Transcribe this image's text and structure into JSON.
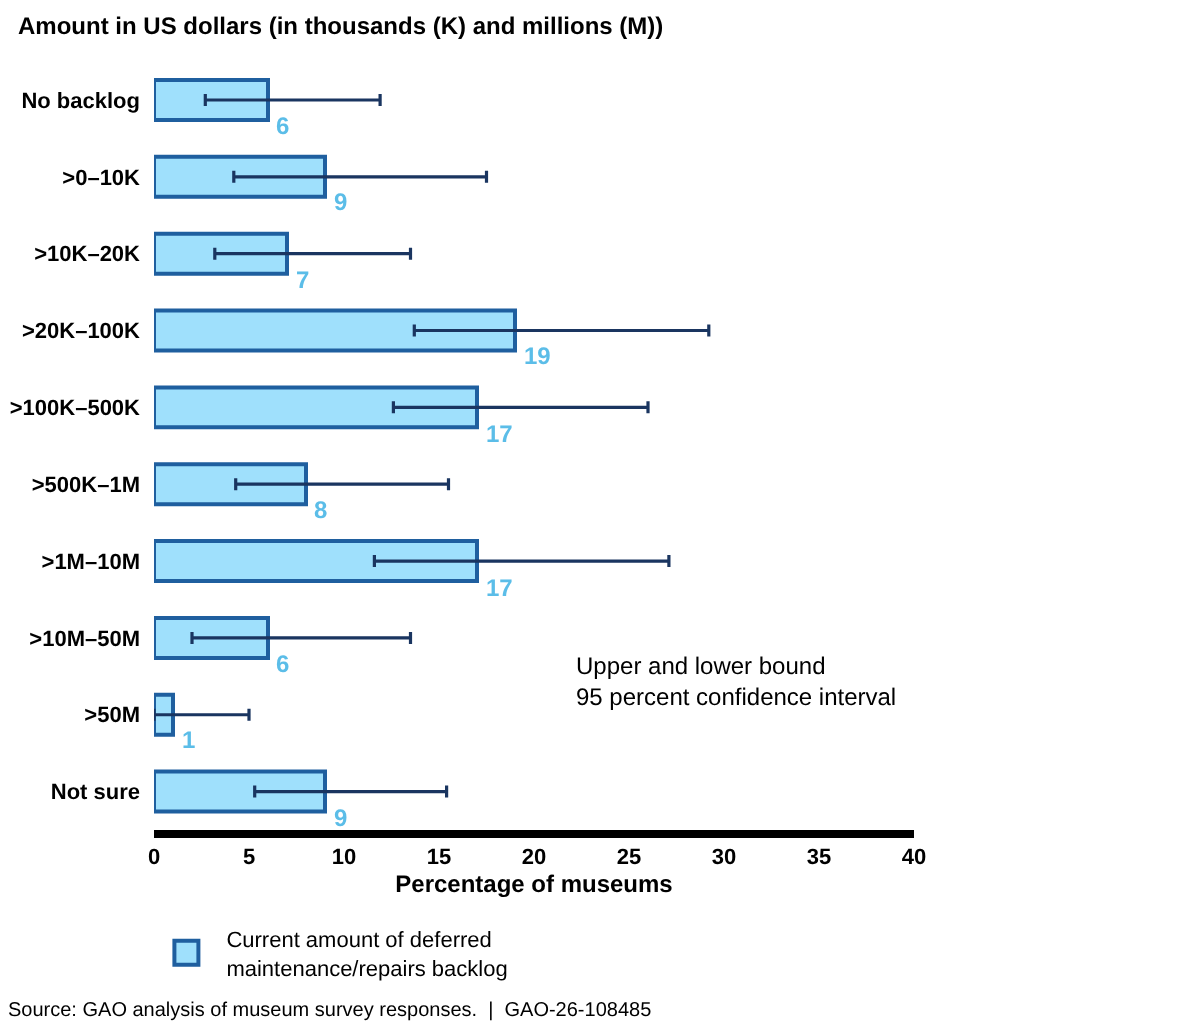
{
  "chart_data": {
    "type": "bar",
    "orientation": "horizontal",
    "ylabel": "Amount in US dollars (in thousands (K) and millions (M))",
    "xlabel": "Percentage of museums",
    "categories": [
      "No backlog",
      ">0–10K",
      ">10K–20K",
      ">20K–100K",
      ">100K–500K",
      ">500K–1M",
      ">1M–10M",
      ">10M–50M",
      ">50M",
      "Not sure"
    ],
    "series": [
      {
        "name": "Current amount of deferred maintenance/repairs backlog",
        "color": "#9fe0fc",
        "values": [
          6,
          9,
          7,
          19,
          17,
          8,
          17,
          6,
          1,
          9
        ],
        "errors": [
          [
            2.7,
            11.9
          ],
          [
            4.2,
            17.5
          ],
          [
            3.2,
            13.5
          ],
          [
            13.7,
            29.2
          ],
          [
            12.6,
            26.0
          ],
          [
            4.3,
            15.5
          ],
          [
            11.6,
            27.1
          ],
          [
            2.0,
            13.5
          ],
          [
            0.0,
            5.0
          ],
          [
            5.3,
            15.4
          ]
        ]
      }
    ],
    "data_labels": true,
    "xlim": [
      0,
      40
    ],
    "xticks": [
      0,
      5,
      10,
      15,
      20,
      25,
      30,
      35,
      40
    ],
    "legend": "bottom left",
    "annotations": [
      "Upper and lower bound\n95 percent confidence interval",
      "Source: GAO analysis of museum survey responses.  |  GAO-26-108485"
    ]
  }
}
